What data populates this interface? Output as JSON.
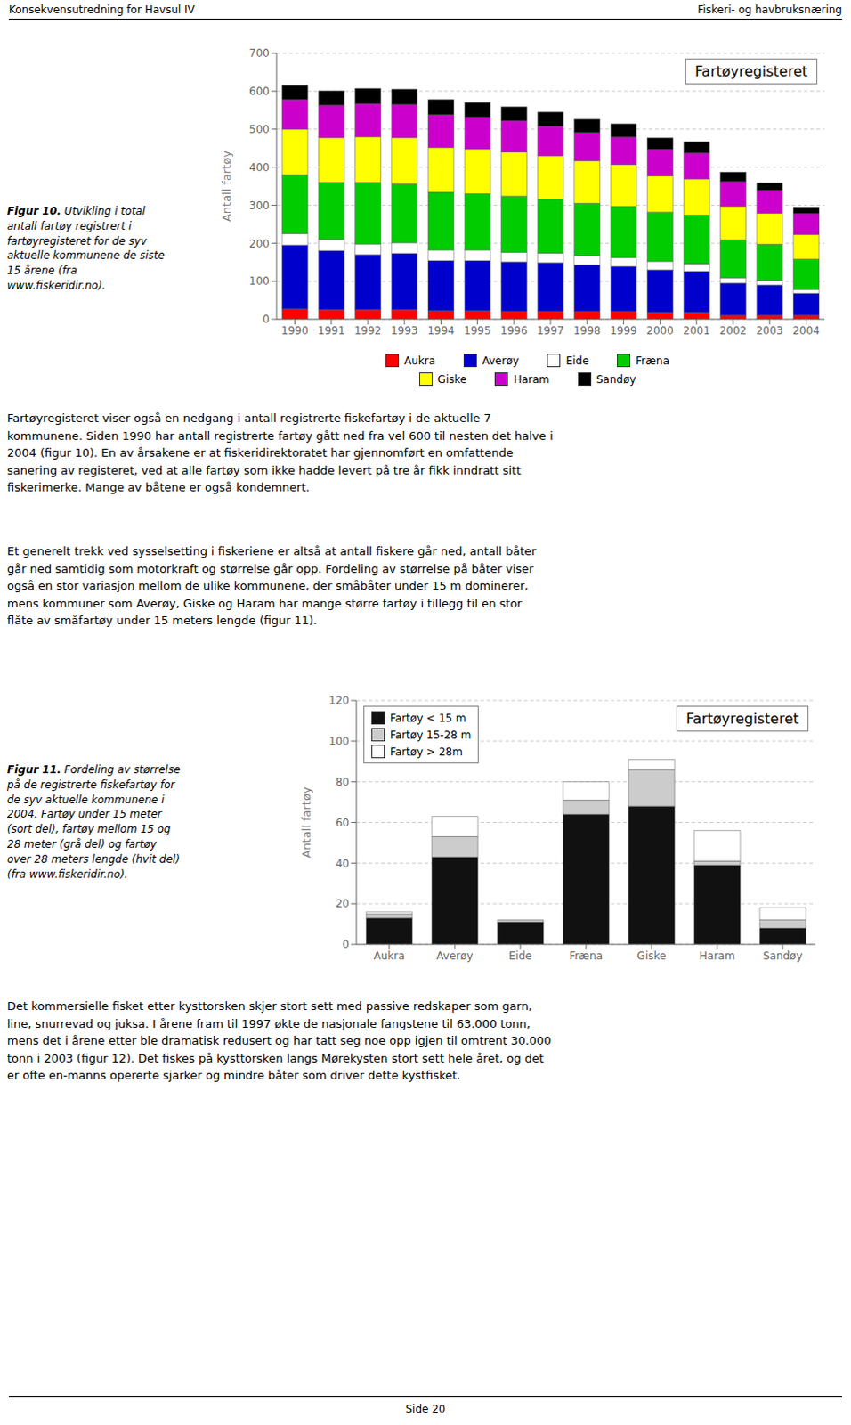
{
  "chart_data": [
    {
      "type": "bar",
      "stacked": true,
      "title": "Fartøyregisteret",
      "ylabel": "Antall fartøy",
      "categories": [
        1990,
        1991,
        1992,
        1993,
        1994,
        1995,
        1996,
        1997,
        1998,
        1999,
        2000,
        2001,
        2002,
        2003,
        2004
      ],
      "series": [
        {
          "name": "Aukra",
          "color": "#ff0000",
          "values": [
            27,
            25,
            25,
            25,
            22,
            22,
            21,
            21,
            21,
            21,
            18,
            18,
            10,
            10,
            10
          ]
        },
        {
          "name": "Averøy",
          "color": "#0000cc",
          "values": [
            168,
            155,
            145,
            148,
            132,
            132,
            130,
            128,
            122,
            118,
            112,
            108,
            85,
            80,
            58
          ]
        },
        {
          "name": "Eide",
          "color": "#ffffff",
          "values": [
            30,
            30,
            28,
            28,
            28,
            28,
            25,
            25,
            24,
            23,
            22,
            20,
            14,
            12,
            10
          ]
        },
        {
          "name": "Fræna",
          "color": "#00cc00",
          "values": [
            155,
            150,
            162,
            155,
            152,
            148,
            148,
            142,
            138,
            135,
            130,
            128,
            100,
            95,
            80
          ]
        },
        {
          "name": "Giske",
          "color": "#ffff00",
          "values": [
            120,
            118,
            120,
            122,
            118,
            118,
            116,
            114,
            112,
            110,
            95,
            95,
            88,
            82,
            65
          ]
        },
        {
          "name": "Haram",
          "color": "#cc00cc",
          "values": [
            78,
            85,
            87,
            87,
            86,
            84,
            82,
            78,
            74,
            72,
            70,
            68,
            65,
            60,
            55
          ]
        },
        {
          "name": "Sandøy",
          "color": "#000000",
          "values": [
            37,
            38,
            40,
            40,
            40,
            38,
            37,
            37,
            35,
            35,
            30,
            30,
            25,
            20,
            17
          ]
        }
      ],
      "ylim": [
        0,
        700
      ],
      "yticks": [
        0,
        100,
        200,
        300,
        400,
        500,
        600,
        700
      ],
      "grid": true,
      "legend": "bottom",
      "annotations": [
        "Konsekvensutredning for Havsul IV",
        "Fiskeri- og havbruksnæring",
        "Figur 10.",
        " Utvikling i total\nantall fartøy registrert i\nfartøyregisteret for de syv\naktuelle kommunene de siste\n15 årene (fra\nwww.fiskeridir.no).",
        "Fartøyregisteret viser også en nedgang i antall registrerte fiskefartøy i de aktuelle 7\nkommunene. Siden 1990 har antall registrerte fartøy gått ned fra vel 600 til nesten det halve i\n2004 (figur 10). En av årsakene er at fiskeridirektoratet har gjennomført en omfattende\nsanering av registeret, ved at alle fartøy som ikke hadde levert på tre år fikk inndratt sitt\nfiskerimerke. Mange av båtene er også kondemnert.",
        "Et generelt trekk ved sysselsetting i fiskeriene er altså at antall fiskere går ned, antall båter\ngår ned samtidig som motorkraft og størrelse går opp. Fordeling av størrelse på båter viser\nogså en stor variasjon mellom de ulike kommunene, der småbåter under 15 m dominerer,\nmens kommuner som Averøy, Giske og Haram har mange større fartøy i tillegg til en stor\nflåte av småfartøy under 15 meters lengde (figur 11)."
      ]
    },
    {
      "type": "bar",
      "stacked": true,
      "title": "Fartøyregisteret",
      "ylabel": "Antall fartøy",
      "categories": [
        "Aukra",
        "Averøy",
        "Eide",
        "Fræna",
        "Giske",
        "Haram",
        "Sandøy"
      ],
      "series": [
        {
          "name": "Fartøy < 15 m",
          "color": "#111111",
          "values": [
            13,
            43,
            11,
            64,
            68,
            39,
            8
          ]
        },
        {
          "name": "Fartøy 15-28 m",
          "color": "#cccccc",
          "values": [
            2,
            10,
            1,
            7,
            18,
            2,
            4
          ]
        },
        {
          "name": "Fartøy > 28m",
          "color": "#ffffff",
          "values": [
            1,
            10,
            0,
            9,
            5,
            15,
            6
          ]
        }
      ],
      "ylim": [
        0,
        120
      ],
      "yticks": [
        0,
        20,
        40,
        60,
        80,
        100,
        120
      ],
      "grid": true,
      "legend": "upper left",
      "annotations": [
        "Figur 11.",
        " Fordeling av størrelse\npå de registrerte fiskefartøy for\nde syv aktuelle kommunene i\n2004. Fartøy under 15 meter\n(sort del), fartøy mellom 15 og\n28 meter (grå del) og fartøy\nover 28 meters lengde (hvit del)\n(fra www.fiskeridir.no).",
        "Det kommersielle fisket etter kysttorsken skjer stort sett med passive redskaper som garn,\nline, snurrevad og juksa. I årene fram til 1997 økte de nasjonale fangstene til 63.000 tonn,\nmens det i årene etter ble dramatisk redusert og har tatt seg noe opp igjen til omtrent 30.000\ntonn i 2003 (figur 12). Det fiskes på kysttorsken langs Mørekysten stort sett hele året, og det\ner ofte en-manns opererte sjarker og mindre båter som driver dette kystfisket.",
        "Side 20"
      ]
    }
  ]
}
